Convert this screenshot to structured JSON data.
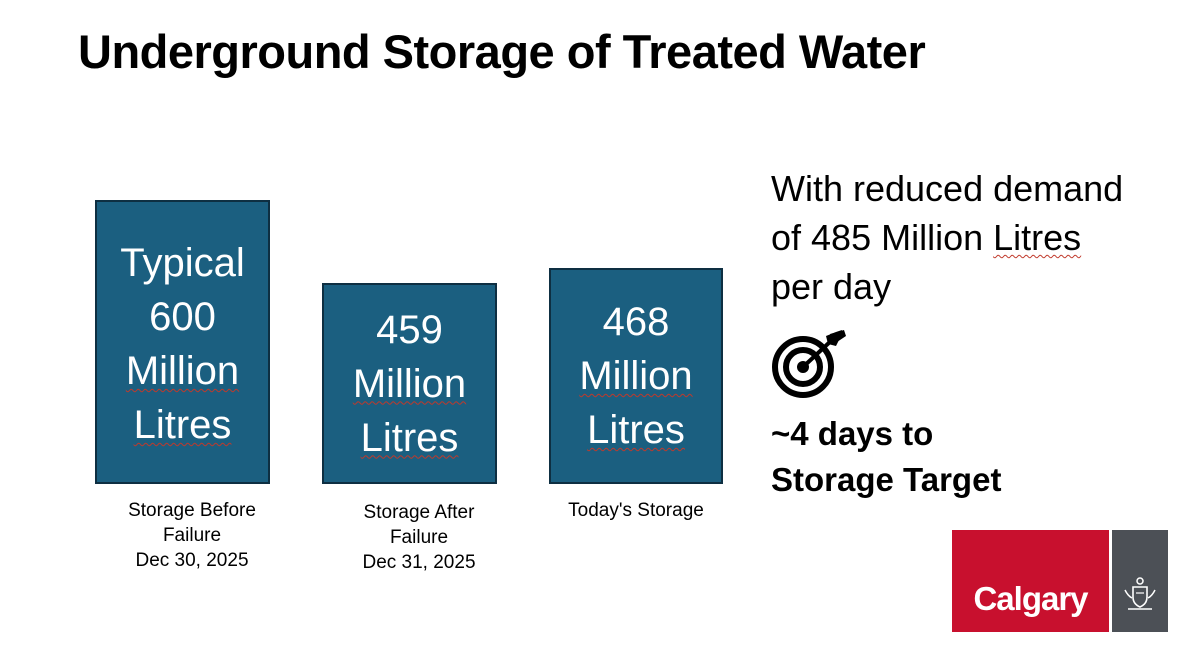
{
  "title": "Underground Storage of Treated Water",
  "bars": [
    {
      "lines": [
        "Typical",
        "600",
        "Million",
        "Litres"
      ],
      "caption": [
        "Storage Before",
        "Failure",
        "Dec 30, 2025"
      ]
    },
    {
      "lines": [
        "459",
        "Million",
        "Litres"
      ],
      "caption": [
        "Storage After",
        "Failure",
        "Dec 31, 2025"
      ]
    },
    {
      "lines": [
        "468",
        "Million",
        "Litres"
      ],
      "caption": [
        "Today's Storage"
      ]
    }
  ],
  "demand": {
    "lines": [
      "With reduced demand",
      "of 485 Million Litres",
      "per day"
    ]
  },
  "target": {
    "icon": "target-icon",
    "lines": [
      "~4 days to",
      "Storage Target"
    ]
  },
  "logo": {
    "wordmark": "Calgary",
    "emblem": "coat-of-arms-icon",
    "colors": {
      "red": "#c8102e",
      "grey": "#4c5056"
    }
  },
  "colors": {
    "bar_fill": "#1b5f80",
    "bar_border": "#0e2f42"
  }
}
